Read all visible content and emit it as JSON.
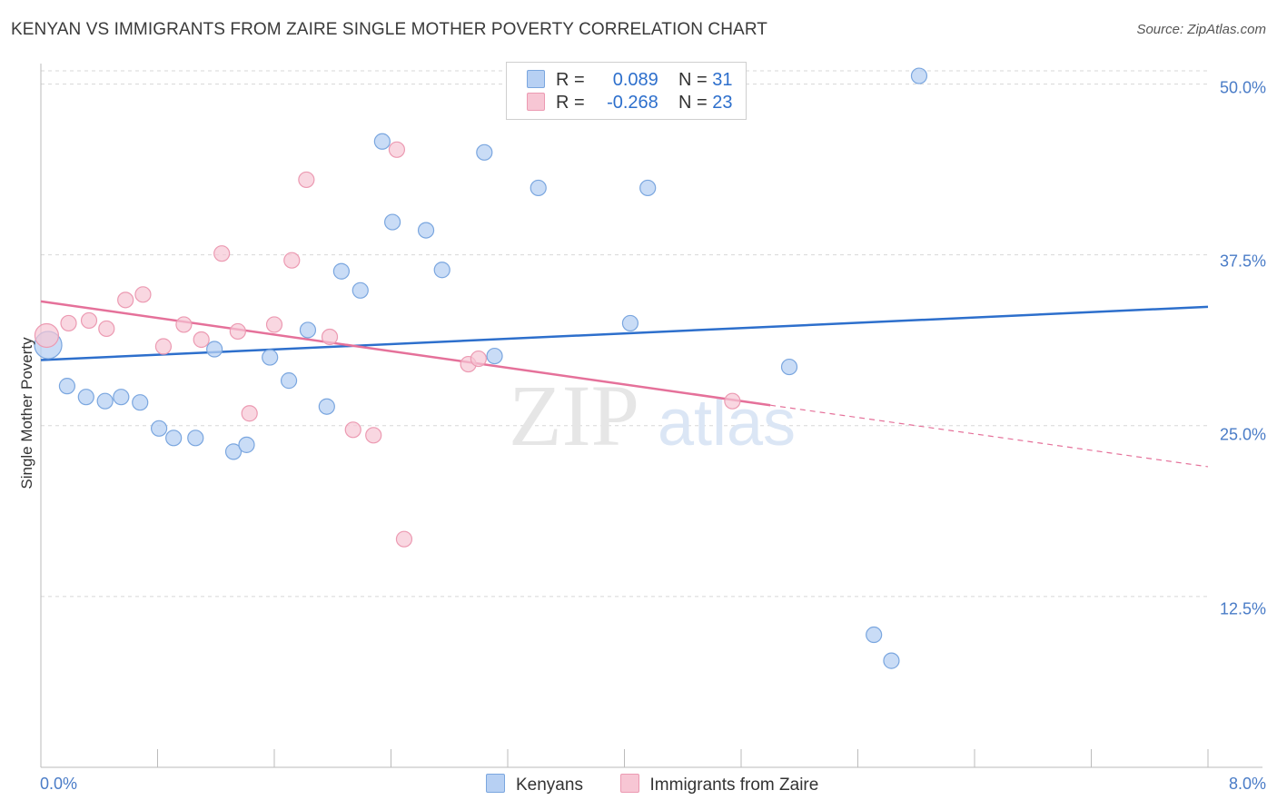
{
  "header": {
    "title": "KENYAN VS IMMIGRANTS FROM ZAIRE SINGLE MOTHER POVERTY CORRELATION CHART",
    "source": "Source: ZipAtlas.com"
  },
  "watermark": {
    "zip": "ZIP",
    "atlas": "atlas"
  },
  "legend_top": {
    "rows": [
      {
        "r_label": "R =",
        "r_value": "0.089",
        "n_label": "N =",
        "n_value": "31"
      },
      {
        "r_label": "R =",
        "r_value": "-0.268",
        "n_label": "N =",
        "n_value": "23"
      }
    ]
  },
  "colors": {
    "kenyans_fill": "#b7d0f3",
    "kenyans_stroke": "#7aa6df",
    "kenyans_line": "#2d6fcc",
    "zaire_fill": "#f7c6d4",
    "zaire_stroke": "#ec9ab2",
    "zaire_line": "#e5719a",
    "grid": "#d7d7d7",
    "tick_label": "#4a7cc7"
  },
  "chart_data": {
    "type": "scatter",
    "title": "KENYAN VS IMMIGRANTS FROM ZAIRE SINGLE MOTHER POVERTY CORRELATION CHART",
    "xlabel": "",
    "ylabel": "Single Mother Poverty",
    "xlim": [
      0,
      8
    ],
    "ylim": [
      0,
      51.5
    ],
    "x_tick_labels": [
      "0.0%",
      "8.0%"
    ],
    "y_ticks": [
      12.5,
      25.0,
      37.5,
      50.0
    ],
    "y_tick_labels": [
      "12.5%",
      "25.0%",
      "37.5%",
      "50.0%"
    ],
    "grid": true,
    "series": [
      {
        "name": "Kenyans",
        "r": 0.089,
        "n": 31,
        "points": [
          {
            "x": 0.05,
            "y": 30.9
          },
          {
            "x": 0.18,
            "y": 27.9
          },
          {
            "x": 0.31,
            "y": 27.1
          },
          {
            "x": 0.44,
            "y": 26.8
          },
          {
            "x": 0.55,
            "y": 27.1
          },
          {
            "x": 0.68,
            "y": 26.7
          },
          {
            "x": 0.81,
            "y": 24.8
          },
          {
            "x": 0.91,
            "y": 24.1
          },
          {
            "x": 1.06,
            "y": 24.1
          },
          {
            "x": 1.19,
            "y": 30.6
          },
          {
            "x": 1.32,
            "y": 23.1
          },
          {
            "x": 1.41,
            "y": 23.6
          },
          {
            "x": 1.57,
            "y": 30.0
          },
          {
            "x": 1.7,
            "y": 28.3
          },
          {
            "x": 1.83,
            "y": 32.0
          },
          {
            "x": 1.96,
            "y": 26.4
          },
          {
            "x": 2.06,
            "y": 36.3
          },
          {
            "x": 2.19,
            "y": 34.9
          },
          {
            "x": 2.34,
            "y": 45.8
          },
          {
            "x": 2.41,
            "y": 39.9
          },
          {
            "x": 2.64,
            "y": 39.3
          },
          {
            "x": 2.75,
            "y": 36.4
          },
          {
            "x": 3.04,
            "y": 45.0
          },
          {
            "x": 3.11,
            "y": 30.1
          },
          {
            "x": 3.41,
            "y": 42.4
          },
          {
            "x": 4.16,
            "y": 42.4
          },
          {
            "x": 4.04,
            "y": 32.5
          },
          {
            "x": 5.13,
            "y": 29.3
          },
          {
            "x": 5.71,
            "y": 9.7
          },
          {
            "x": 5.83,
            "y": 7.8
          },
          {
            "x": 6.02,
            "y": 50.6
          }
        ],
        "trend": {
          "x0": 0.0,
          "y0": 29.8,
          "x1": 8.0,
          "y1": 33.7
        }
      },
      {
        "name": "Immigrants from Zaire",
        "r": -0.268,
        "n": 23,
        "points": [
          {
            "x": 0.04,
            "y": 31.6
          },
          {
            "x": 0.19,
            "y": 32.5
          },
          {
            "x": 0.33,
            "y": 32.7
          },
          {
            "x": 0.45,
            "y": 32.1
          },
          {
            "x": 0.58,
            "y": 34.2
          },
          {
            "x": 0.7,
            "y": 34.6
          },
          {
            "x": 0.84,
            "y": 30.8
          },
          {
            "x": 0.98,
            "y": 32.4
          },
          {
            "x": 1.1,
            "y": 31.3
          },
          {
            "x": 1.24,
            "y": 37.6
          },
          {
            "x": 1.35,
            "y": 31.9
          },
          {
            "x": 1.43,
            "y": 25.9
          },
          {
            "x": 1.6,
            "y": 32.4
          },
          {
            "x": 1.72,
            "y": 37.1
          },
          {
            "x": 1.82,
            "y": 43.0
          },
          {
            "x": 1.98,
            "y": 31.5
          },
          {
            "x": 2.14,
            "y": 24.7
          },
          {
            "x": 2.28,
            "y": 24.3
          },
          {
            "x": 2.44,
            "y": 45.2
          },
          {
            "x": 2.49,
            "y": 16.7
          },
          {
            "x": 2.93,
            "y": 29.5
          },
          {
            "x": 3.0,
            "y": 29.9
          },
          {
            "x": 4.74,
            "y": 26.8
          }
        ],
        "trend": {
          "x0": 0.0,
          "y0": 34.1,
          "x1": 5.0,
          "y1": 26.5
        },
        "trend_dashed": {
          "x0": 5.0,
          "y0": 26.5,
          "x1": 8.0,
          "y1": 22.0
        }
      }
    ]
  },
  "bottom_legend": [
    {
      "label": "Kenyans"
    },
    {
      "label": "Immigrants from Zaire"
    }
  ]
}
